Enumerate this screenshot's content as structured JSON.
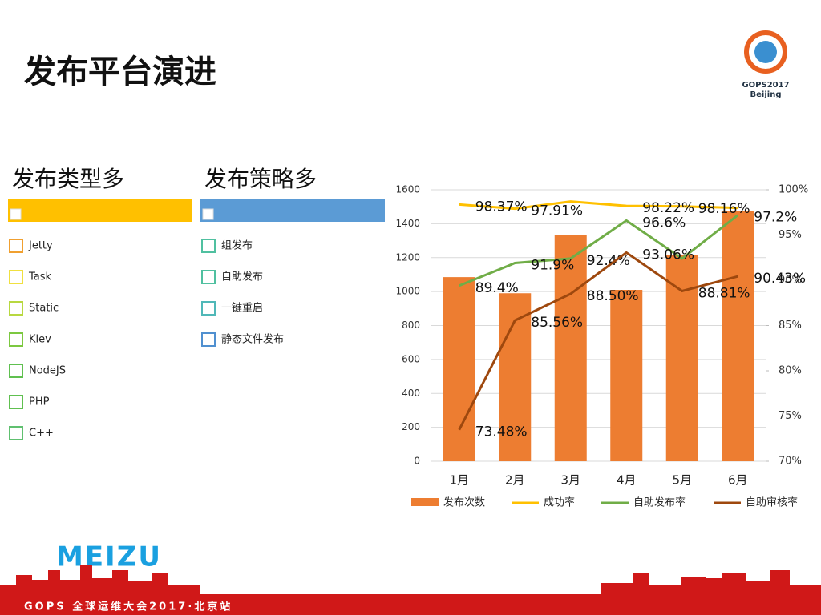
{
  "header": {
    "title": "发布平台演进",
    "logo_lines": [
      "GOPS2017",
      "Beijing"
    ]
  },
  "lists": [
    {
      "title": "发布类型多",
      "color": "#ffc000",
      "items": [
        "Jetty",
        "Task",
        "Static",
        "Kiev",
        "NodeJS",
        "PHP",
        "C++"
      ],
      "item_colors": [
        "#f0a030",
        "#f0e040",
        "#b8d840",
        "#7cc840",
        "#60c050",
        "#60c050",
        "#60c070"
      ]
    },
    {
      "title": "发布策略多",
      "color": "#5b9bd5",
      "items": [
        "组发布",
        "自助发布",
        "一键重启",
        "静态文件发布"
      ],
      "item_colors": [
        "#50c0a0",
        "#50c0a0",
        "#50b8b8",
        "#5090d0"
      ]
    }
  ],
  "chart_data": {
    "type": "bar-line",
    "categories": [
      "1月",
      "2月",
      "3月",
      "4月",
      "5月",
      "6月"
    ],
    "ylim": [
      0,
      1600
    ],
    "yticks": [
      0,
      200,
      400,
      600,
      800,
      1000,
      1200,
      1400,
      1600
    ],
    "y2lim": [
      70,
      100
    ],
    "y2ticks": [
      {
        "value": 70,
        "label": "70%"
      },
      {
        "value": 75,
        "label": "75%"
      },
      {
        "value": 80,
        "label": "80%"
      },
      {
        "value": 85,
        "label": "85%"
      },
      {
        "value": 90,
        "label": "90%"
      },
      {
        "value": 95,
        "label": "95%"
      },
      {
        "value": 100,
        "label": "100%"
      }
    ],
    "series": [
      {
        "name": "发布次数",
        "type": "bar",
        "color": "#ed7d31",
        "values": [
          1085,
          990,
          1335,
          1010,
          1217,
          1476
        ]
      },
      {
        "name": "成功率",
        "type": "line",
        "axis": "y2",
        "color": "#ffc000",
        "values": [
          98.37,
          97.91,
          98.7,
          98.22,
          98.16,
          98.0
        ],
        "value_labels": [
          "98.37%",
          "97.91%",
          null,
          "98.22%",
          "98.16%",
          null
        ]
      },
      {
        "name": "自助发布率",
        "type": "line",
        "axis": "y2",
        "color": "#70ad47",
        "values": [
          89.4,
          91.9,
          92.4,
          96.6,
          92.4,
          97.2
        ],
        "value_labels": [
          "89.4%",
          "91.9%",
          "92.4%",
          "96.6%",
          null,
          "97.2%"
        ]
      },
      {
        "name": "自助审核率",
        "type": "line",
        "axis": "y2",
        "color": "#9e480e",
        "values": [
          73.48,
          85.56,
          88.5,
          93.06,
          88.81,
          90.43
        ],
        "value_labels": [
          "73.48%",
          "85.56%",
          "88.50%",
          "93.06%",
          "88.81%",
          "90.43%"
        ]
      }
    ]
  },
  "footer": {
    "brand": "MEIZU",
    "event": "GOPS 全球运维大会2017·北京站"
  }
}
